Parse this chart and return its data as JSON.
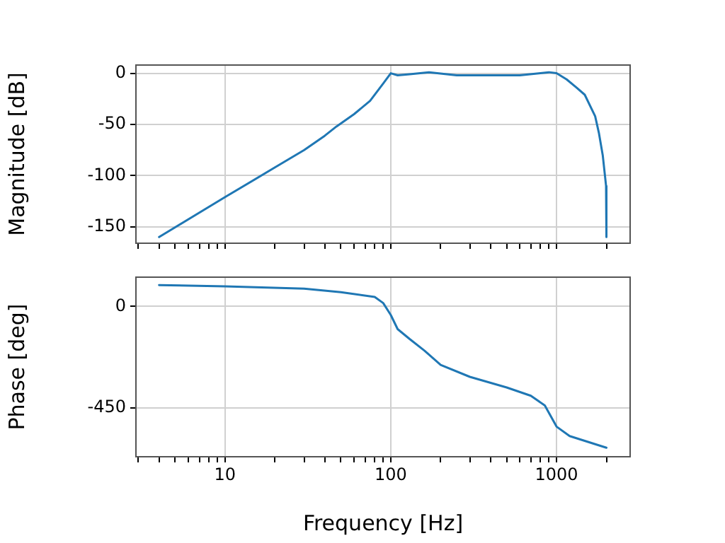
{
  "chart_data": [
    {
      "type": "line",
      "ylabel": "Magnitude [dB]",
      "log": "x",
      "grid": true,
      "tick_labels": "y",
      "marker": "none",
      "line_style": "solid",
      "xlim": [
        2.9,
        2780
      ],
      "ylim": [
        -166,
        8
      ],
      "yticks": [
        0,
        -50,
        -100,
        -150
      ],
      "xticks": [
        {
          "value": 3,
          "label": null
        },
        {
          "value": 4,
          "label": null
        },
        {
          "value": 5,
          "label": null
        },
        {
          "value": 6,
          "label": null
        },
        {
          "value": 7,
          "label": null
        },
        {
          "value": 8,
          "label": null
        },
        {
          "value": 9,
          "label": null
        },
        10,
        {
          "value": 20,
          "label": null
        },
        {
          "value": 30,
          "label": null
        },
        {
          "value": 40,
          "label": null
        },
        {
          "value": 50,
          "label": null
        },
        {
          "value": 60,
          "label": null
        },
        {
          "value": 70,
          "label": null
        },
        {
          "value": 80,
          "label": null
        },
        {
          "value": 90,
          "label": null
        },
        100,
        {
          "value": 200,
          "label": null
        },
        {
          "value": 300,
          "label": null
        },
        {
          "value": 400,
          "label": null
        },
        {
          "value": 500,
          "label": null
        },
        {
          "value": 600,
          "label": null
        },
        {
          "value": 700,
          "label": null
        },
        {
          "value": 800,
          "label": null
        },
        {
          "value": 900,
          "label": null
        },
        1000,
        {
          "value": 2000,
          "label": null
        }
      ],
      "series": [
        {
          "color": "#1f77b4",
          "x": [
            4,
            10,
            20,
            30,
            40,
            47,
            60,
            75,
            90,
            100,
            110,
            130,
            170,
            250,
            400,
            600,
            800,
            900,
            1000,
            1150,
            1320,
            1480,
            1710,
            1800,
            1900,
            1990,
            2000
          ],
          "values": [
            -160,
            -121,
            -92,
            -75,
            -61,
            -52,
            -40,
            -27,
            -10,
            0,
            -2,
            -1,
            1,
            -2,
            -2,
            -2,
            0,
            1,
            0,
            -6,
            -14,
            -21,
            -42,
            -58,
            -80,
            -110,
            -160
          ]
        }
      ]
    },
    {
      "type": "line",
      "xlabel": "Frequency [Hz]",
      "ylabel": "Phase [deg]",
      "log": "x",
      "grid": true,
      "marker": "none",
      "line_style": "solid",
      "xlim": [
        2.9,
        2780
      ],
      "ylim": [
        -668,
        130
      ],
      "yticks": [
        0,
        -450
      ],
      "xticks": [
        {
          "value": 3,
          "label": null
        },
        {
          "value": 4,
          "label": null
        },
        {
          "value": 5,
          "label": null
        },
        {
          "value": 6,
          "label": null
        },
        {
          "value": 7,
          "label": null
        },
        {
          "value": 8,
          "label": null
        },
        {
          "value": 9,
          "label": null
        },
        10,
        {
          "value": 20,
          "label": null
        },
        {
          "value": 30,
          "label": null
        },
        {
          "value": 40,
          "label": null
        },
        {
          "value": 50,
          "label": null
        },
        {
          "value": 60,
          "label": null
        },
        {
          "value": 70,
          "label": null
        },
        {
          "value": 80,
          "label": null
        },
        {
          "value": 90,
          "label": null
        },
        100,
        {
          "value": 200,
          "label": null
        },
        {
          "value": 300,
          "label": null
        },
        {
          "value": 400,
          "label": null
        },
        {
          "value": 500,
          "label": null
        },
        {
          "value": 600,
          "label": null
        },
        {
          "value": 700,
          "label": null
        },
        {
          "value": 800,
          "label": null
        },
        {
          "value": 900,
          "label": null
        },
        1000,
        {
          "value": 2000,
          "label": null
        }
      ],
      "series": [
        {
          "color": "#1f77b4",
          "x": [
            4,
            10,
            30,
            50,
            80,
            90,
            100,
            110,
            130,
            160,
            200,
            300,
            500,
            700,
            850,
            1000,
            1200,
            2000
          ],
          "values": [
            95,
            89,
            79,
            63,
            42,
            15,
            -38,
            -101,
            -145,
            -197,
            -260,
            -313,
            -360,
            -397,
            -440,
            -534,
            -576,
            -628
          ]
        }
      ]
    }
  ]
}
